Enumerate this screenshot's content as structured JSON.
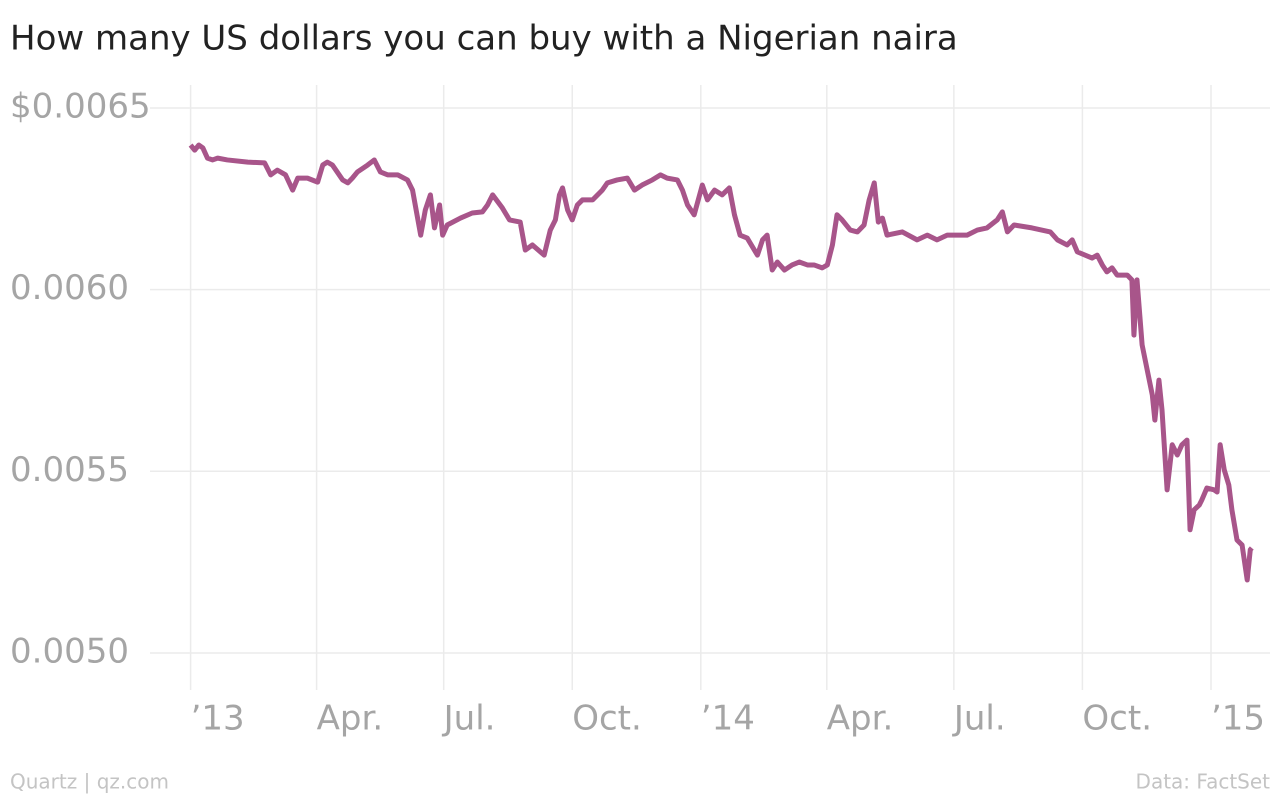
{
  "chart_data": {
    "type": "line",
    "title": "How many US dollars you can buy with a Nigerian naira",
    "source": "Data: FactSet",
    "credit": "Quartz | qz.com",
    "color": "#a8558a",
    "grid": true,
    "xlim": [
      2012.94,
      2015.1
    ],
    "ylim": [
      0.0049,
      0.00656
    ],
    "xticks": [
      {
        "value": 2013,
        "label": "’13"
      },
      {
        "value": 2013.247,
        "label": "Apr."
      },
      {
        "value": 2013.496,
        "label": "Jul."
      },
      {
        "value": 2013.748,
        "label": "Oct."
      },
      {
        "value": 2014,
        "label": "’14"
      },
      {
        "value": 2014.247,
        "label": "Apr."
      },
      {
        "value": 2014.496,
        "label": "Jul."
      },
      {
        "value": 2014.748,
        "label": "Oct."
      },
      {
        "value": 2015,
        "label": "’15"
      }
    ],
    "yticks": [
      {
        "value": 0.005,
        "label": "0.0050"
      },
      {
        "value": 0.0055,
        "label": "0.0055"
      },
      {
        "value": 0.006,
        "label": "0.0060"
      },
      {
        "value": 0.0065,
        "label": "$0.0065"
      }
    ],
    "x": [
      2013.0,
      2013.008,
      2013.016,
      2013.024,
      2013.033,
      2013.043,
      2013.053,
      2013.072,
      2013.112,
      2013.145,
      2013.157,
      2013.17,
      2013.186,
      2013.2,
      2013.21,
      2013.229,
      2013.249,
      2013.259,
      2013.268,
      2013.278,
      2013.298,
      2013.308,
      2013.317,
      2013.327,
      2013.347,
      2013.36,
      2013.372,
      2013.386,
      2013.406,
      2013.425,
      2013.435,
      2013.451,
      2013.46,
      2013.47,
      2013.478,
      2013.488,
      2013.494,
      2013.503,
      2013.529,
      2013.552,
      2013.572,
      2013.582,
      2013.592,
      2013.611,
      2013.625,
      2013.646,
      2013.656,
      2013.67,
      2013.693,
      2013.705,
      2013.715,
      2013.723,
      2013.729,
      2013.739,
      2013.748,
      2013.758,
      2013.768,
      2013.788,
      2013.807,
      2013.817,
      2013.836,
      2013.856,
      2013.87,
      2013.885,
      2013.905,
      2013.921,
      2013.934,
      2013.954,
      2013.964,
      2013.974,
      2013.987,
      2014.003,
      2014.013,
      2014.027,
      2014.042,
      2014.056,
      2014.066,
      2014.077,
      2014.091,
      2014.111,
      2014.121,
      2014.13,
      2014.14,
      2014.15,
      2014.164,
      2014.179,
      2014.193,
      2014.209,
      2014.222,
      2014.238,
      2014.248,
      2014.258,
      2014.267,
      2014.277,
      2014.293,
      2014.307,
      2014.32,
      2014.33,
      2014.34,
      2014.348,
      2014.356,
      2014.365,
      2014.395,
      2014.424,
      2014.444,
      2014.463,
      2014.483,
      2014.522,
      2014.542,
      2014.561,
      2014.581,
      2014.591,
      2014.601,
      2014.614,
      2014.649,
      2014.685,
      2014.699,
      2014.718,
      2014.728,
      2014.738,
      2014.767,
      2014.777,
      2014.787,
      2014.796,
      2014.806,
      2014.816,
      2014.836,
      2014.845,
      2014.849,
      2014.855,
      2014.865,
      2014.875,
      2014.885,
      2014.89,
      2014.898,
      2014.904,
      2014.914,
      2014.924,
      2014.934,
      2014.943,
      2014.953,
      2014.959,
      2014.967,
      2014.977,
      2014.982,
      2014.992,
      2015.006,
      2015.012,
      2015.018,
      2015.026,
      2015.035,
      2015.041,
      2015.051,
      2015.061,
      2015.071,
      2015.077,
      2015.08
    ],
    "values": [
      0.006398,
      0.006384,
      0.006398,
      0.00639,
      0.006362,
      0.006357,
      0.006362,
      0.006357,
      0.006351,
      0.006349,
      0.006316,
      0.006329,
      0.006316,
      0.006274,
      0.006307,
      0.006307,
      0.006296,
      0.006343,
      0.006351,
      0.006343,
      0.006302,
      0.006294,
      0.006307,
      0.006324,
      0.006343,
      0.006357,
      0.006324,
      0.006316,
      0.006316,
      0.006302,
      0.006274,
      0.00615,
      0.006219,
      0.006261,
      0.00617,
      0.006233,
      0.00615,
      0.006178,
      0.006197,
      0.006211,
      0.006214,
      0.006233,
      0.006261,
      0.006225,
      0.006192,
      0.006186,
      0.006109,
      0.006123,
      0.006095,
      0.006164,
      0.006192,
      0.006261,
      0.00628,
      0.006219,
      0.006192,
      0.006233,
      0.006247,
      0.006247,
      0.006274,
      0.006294,
      0.006302,
      0.006307,
      0.006274,
      0.006288,
      0.006302,
      0.006316,
      0.006307,
      0.006302,
      0.006274,
      0.006233,
      0.006206,
      0.006288,
      0.006247,
      0.006274,
      0.006261,
      0.00628,
      0.006206,
      0.00615,
      0.006142,
      0.006095,
      0.006137,
      0.00615,
      0.006054,
      0.006076,
      0.006054,
      0.006068,
      0.006076,
      0.006068,
      0.006068,
      0.00606,
      0.006068,
      0.006123,
      0.006206,
      0.006192,
      0.006164,
      0.006159,
      0.006178,
      0.006247,
      0.006294,
      0.006186,
      0.006197,
      0.00615,
      0.006159,
      0.006137,
      0.00615,
      0.006137,
      0.00615,
      0.00615,
      0.006164,
      0.00617,
      0.006192,
      0.006214,
      0.006159,
      0.006178,
      0.00617,
      0.006159,
      0.006137,
      0.006123,
      0.006137,
      0.006104,
      0.006087,
      0.006095,
      0.006068,
      0.006049,
      0.00606,
      0.00604,
      0.00604,
      0.006027,
      0.005875,
      0.006027,
      0.005848,
      0.005779,
      0.00571,
      0.005641,
      0.005751,
      0.005669,
      0.005449,
      0.005573,
      0.005545,
      0.005573,
      0.005586,
      0.005339,
      0.005394,
      0.005407,
      0.005421,
      0.005454,
      0.005449,
      0.005443,
      0.005573,
      0.005504,
      0.005462,
      0.005394,
      0.005311,
      0.005297,
      0.005201,
      0.005284,
      0.005289
    ]
  }
}
